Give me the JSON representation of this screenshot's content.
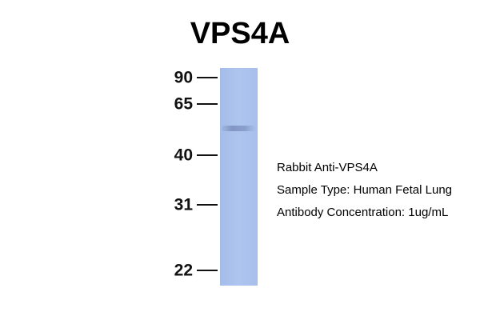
{
  "title": "VPS4A",
  "markers": [
    90,
    65,
    40,
    31,
    22
  ],
  "annotations": [
    "Rabbit Anti-VPS4A",
    "Sample Type: Human Fetal Lung",
    "Antibody Concentration: 1ug/mL"
  ]
}
